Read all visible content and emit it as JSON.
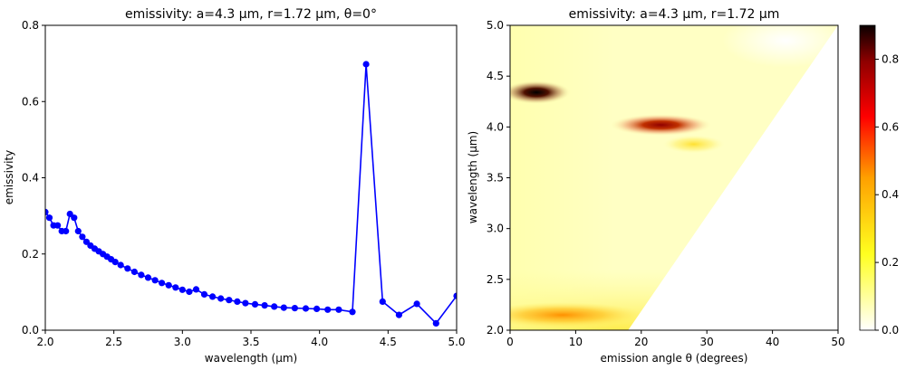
{
  "chart_data": [
    {
      "type": "line",
      "title": "emissivity: a=4.3 μm, r=1.72 μm, θ=0°",
      "xlabel": "wavelength (μm)",
      "ylabel": "emissivity",
      "xlim": [
        2.0,
        5.0
      ],
      "ylim": [
        0.0,
        0.8
      ],
      "xticks": [
        "2.0",
        "2.5",
        "3.0",
        "3.5",
        "4.0",
        "4.5",
        "5.0"
      ],
      "yticks": [
        "0.0",
        "0.2",
        "0.4",
        "0.6",
        "0.8"
      ],
      "color": "#0000ff",
      "marker": "circle",
      "x": [
        2.0,
        2.03,
        2.06,
        2.09,
        2.12,
        2.15,
        2.18,
        2.21,
        2.24,
        2.27,
        2.3,
        2.33,
        2.36,
        2.39,
        2.42,
        2.45,
        2.48,
        2.51,
        2.55,
        2.6,
        2.65,
        2.7,
        2.75,
        2.8,
        2.85,
        2.9,
        2.95,
        3.0,
        3.05,
        3.1,
        3.16,
        3.22,
        3.28,
        3.34,
        3.4,
        3.46,
        3.53,
        3.6,
        3.67,
        3.74,
        3.82,
        3.9,
        3.98,
        4.06,
        4.14,
        4.24,
        4.34,
        4.46,
        4.58,
        4.71,
        4.85,
        5.0
      ],
      "y": [
        0.31,
        0.295,
        0.275,
        0.275,
        0.26,
        0.26,
        0.305,
        0.295,
        0.26,
        0.245,
        0.232,
        0.222,
        0.214,
        0.207,
        0.2,
        0.193,
        0.186,
        0.179,
        0.171,
        0.162,
        0.153,
        0.145,
        0.138,
        0.131,
        0.124,
        0.118,
        0.112,
        0.106,
        0.101,
        0.107,
        0.094,
        0.088,
        0.083,
        0.079,
        0.075,
        0.071,
        0.068,
        0.065,
        0.062,
        0.059,
        0.058,
        0.057,
        0.056,
        0.054,
        0.054,
        0.048,
        0.698,
        0.075,
        0.04,
        0.069,
        0.018,
        0.09
      ]
    },
    {
      "type": "heatmap",
      "title": "emissivity: a=4.3 μm, r=1.72 μm",
      "xlabel": "emission angle θ (degrees)",
      "ylabel": "wavelength (μm)",
      "xlim": [
        0,
        50
      ],
      "ylim": [
        2.0,
        5.0
      ],
      "xticks": [
        "0",
        "10",
        "20",
        "30",
        "40",
        "50"
      ],
      "yticks": [
        "2.0",
        "2.5",
        "3.0",
        "3.5",
        "4.0",
        "4.5",
        "5.0"
      ],
      "colormap": "hot_r",
      "colorbar_range": [
        0.0,
        0.9
      ],
      "colorbar_ticks": [
        "0.0",
        "0.2",
        "0.4",
        "0.6",
        "0.8"
      ],
      "background_level": 0.04,
      "valid_region_boundary": [
        [
          18,
          2.0
        ],
        [
          50,
          5.0
        ]
      ],
      "hotspots": [
        {
          "theta": 4,
          "wavelength": 4.34,
          "value": 0.8
        },
        {
          "theta": 23,
          "wavelength": 4.02,
          "value": 0.6
        },
        {
          "theta": 28,
          "wavelength": 3.83,
          "value": 0.18
        },
        {
          "theta": 8,
          "wavelength": 2.15,
          "value": 0.28
        }
      ]
    }
  ]
}
